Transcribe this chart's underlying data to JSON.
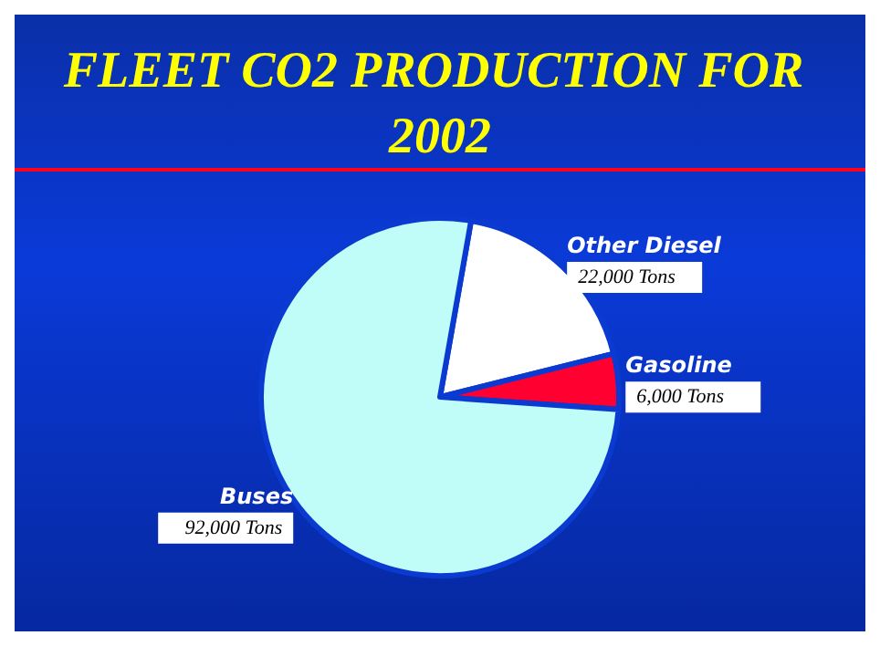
{
  "chart_data": {
    "type": "pie",
    "title": "FLEET CO2 PRODUCTION FOR 2002",
    "categories": [
      "Other Diesel",
      "Gasoline",
      "Buses"
    ],
    "values": [
      22000,
      6000,
      92000
    ],
    "colors": [
      "#ffffff",
      "#ff0030",
      "#c0fcf8"
    ],
    "value_labels": [
      "22,000 Tons",
      "6,000 Tons",
      "92,000 Tons"
    ],
    "legend": false
  }
}
